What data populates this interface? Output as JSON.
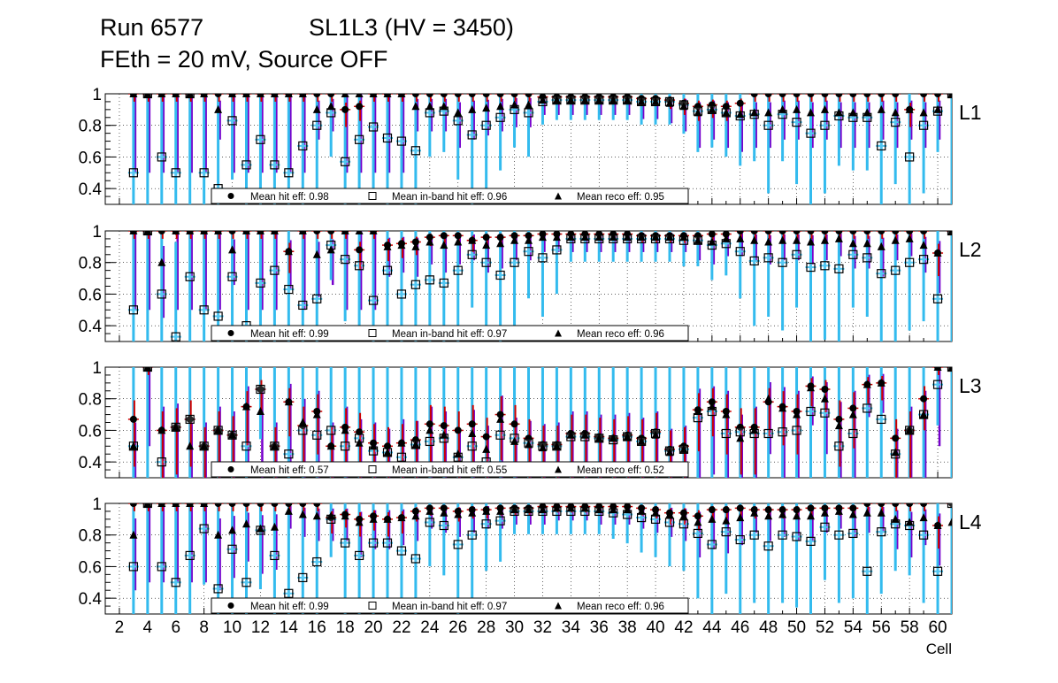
{
  "header": {
    "run": "Run 6577",
    "chamber": "SL1L3 (HV = 3450)",
    "conditions": "FEth = 20 mV, Source OFF"
  },
  "legend_labels": {
    "hit": "Mean hit  eff:",
    "inband": "Mean in-band hit eff:",
    "reco": "Mean reco eff:"
  },
  "colors": {
    "hit_error": "#cc0000",
    "inband_error": "#33bbee",
    "reco_error": "#7700cc",
    "marker": "#000000"
  },
  "chart_data": {
    "type": "scatter",
    "xlabel": "Cell",
    "xlim": [
      1,
      61
    ],
    "ylim": [
      0.3,
      1.0
    ],
    "x_ticks": [
      2,
      4,
      6,
      8,
      10,
      12,
      14,
      16,
      18,
      20,
      22,
      24,
      26,
      28,
      30,
      32,
      34,
      36,
      38,
      40,
      42,
      44,
      46,
      48,
      50,
      52,
      54,
      56,
      58,
      60
    ],
    "y_ticks": [
      0.4,
      0.6,
      0.8,
      1
    ],
    "y_tick_labels": [
      "0.4",
      "0.6",
      "0.8",
      "1"
    ],
    "panels": [
      {
        "layer": "L1",
        "mean_hit_eff": "0.98",
        "mean_inband_eff": "0.96",
        "mean_reco_eff": "0.95",
        "hit": [
          1.0,
          1.0,
          1.0,
          1.0,
          1.0,
          1.0,
          1.0,
          1.0,
          1.0,
          1.0,
          1.0,
          1.0,
          1.0,
          1.0,
          1.0,
          0.9,
          0.92,
          1.0,
          1.0,
          1.0,
          1.0,
          1.0,
          1.0,
          1.0,
          1.0,
          1.0,
          1.0,
          1.0,
          1.0,
          0.98,
          0.98,
          0.98,
          0.98,
          0.98,
          0.98,
          0.98,
          0.97,
          0.97,
          0.96,
          0.94,
          0.92,
          0.93,
          0.92,
          0.94,
          1.0,
          1.0,
          1.0,
          1.0,
          1.0,
          1.0,
          1.0,
          1.0,
          1.0,
          1.0,
          1.0,
          0.9,
          1.0,
          1.0,
          1.0
        ],
        "inband": [
          0.5,
          1.0,
          0.6,
          0.5,
          1.0,
          0.5,
          0.4,
          0.83,
          0.55,
          0.71,
          0.55,
          0.5,
          0.67,
          0.8,
          0.88,
          0.57,
          0.71,
          0.79,
          0.72,
          0.7,
          0.64,
          0.88,
          0.89,
          0.83,
          0.74,
          0.8,
          0.85,
          0.9,
          0.88,
          0.95,
          0.96,
          0.96,
          0.96,
          0.96,
          0.96,
          0.96,
          0.95,
          0.95,
          0.95,
          0.93,
          0.89,
          0.9,
          0.88,
          0.86,
          0.87,
          0.8,
          0.87,
          0.82,
          0.75,
          0.8,
          0.86,
          0.85,
          0.85,
          0.67,
          0.82,
          0.6,
          0.8,
          0.89,
          1.0
        ],
        "reco": [
          1.0,
          1.0,
          1.0,
          1.0,
          1.0,
          1.0,
          0.9,
          1.0,
          1.0,
          1.0,
          1.0,
          1.0,
          1.0,
          0.9,
          0.92,
          1.0,
          1.0,
          1.0,
          1.0,
          1.0,
          0.92,
          0.92,
          0.92,
          0.88,
          0.9,
          0.91,
          0.92,
          0.93,
          0.93,
          0.96,
          0.96,
          0.96,
          0.96,
          0.96,
          0.96,
          0.96,
          0.95,
          0.95,
          0.94,
          0.92,
          0.88,
          0.9,
          0.88,
          0.87,
          0.88,
          0.88,
          0.9,
          0.9,
          0.88,
          0.9,
          0.88,
          0.88,
          0.88,
          0.9,
          0.88,
          0.9,
          0.88,
          0.9,
          1.0
        ]
      },
      {
        "layer": "L2",
        "mean_hit_eff": "0.99",
        "mean_inband_eff": "0.97",
        "mean_reco_eff": "0.96",
        "hit": [
          1.0,
          1.0,
          1.0,
          1.0,
          1.0,
          1.0,
          1.0,
          1.0,
          1.0,
          1.0,
          1.0,
          0.87,
          1.0,
          1.0,
          1.0,
          1.0,
          0.88,
          1.0,
          0.91,
          0.92,
          0.93,
          0.96,
          0.97,
          0.97,
          0.94,
          0.96,
          0.96,
          0.97,
          0.97,
          0.98,
          0.98,
          0.98,
          0.98,
          0.98,
          0.98,
          0.98,
          0.97,
          0.97,
          0.97,
          0.97,
          0.97,
          0.98,
          0.98,
          1.0,
          1.0,
          1.0,
          1.0,
          1.0,
          1.0,
          1.0,
          1.0,
          1.0,
          1.0,
          1.0,
          1.0,
          1.0,
          1.0,
          0.86,
          1.0
        ],
        "inband": [
          0.5,
          1.0,
          0.6,
          0.33,
          0.71,
          0.5,
          0.46,
          0.71,
          0.4,
          0.67,
          0.75,
          0.63,
          0.53,
          0.57,
          0.91,
          0.82,
          0.78,
          0.56,
          0.75,
          0.6,
          0.66,
          0.69,
          0.67,
          0.75,
          0.85,
          0.8,
          0.72,
          0.8,
          0.87,
          0.83,
          0.88,
          0.95,
          0.95,
          0.95,
          0.95,
          0.95,
          0.95,
          0.95,
          0.95,
          0.94,
          0.94,
          0.91,
          0.92,
          0.87,
          0.81,
          0.83,
          0.8,
          0.85,
          0.77,
          0.78,
          0.76,
          0.85,
          0.83,
          0.73,
          0.75,
          0.8,
          0.82,
          0.57,
          1.0
        ],
        "reco": [
          1.0,
          1.0,
          0.8,
          1.0,
          1.0,
          1.0,
          1.0,
          0.88,
          1.0,
          1.0,
          1.0,
          0.87,
          1.0,
          0.85,
          0.88,
          1.0,
          1.0,
          1.0,
          0.9,
          0.91,
          0.9,
          0.93,
          0.91,
          0.93,
          0.94,
          0.91,
          0.92,
          0.94,
          0.94,
          0.96,
          0.96,
          0.96,
          0.96,
          0.96,
          0.96,
          0.96,
          0.96,
          0.96,
          0.96,
          0.96,
          0.94,
          0.93,
          0.95,
          0.95,
          0.94,
          0.93,
          0.94,
          0.94,
          0.93,
          0.94,
          0.95,
          0.92,
          0.92,
          0.9,
          0.94,
          0.95,
          0.91,
          0.86,
          1.0
        ]
      },
      {
        "layer": "L3",
        "mean_hit_eff": "0.57",
        "mean_inband_eff": "0.55",
        "mean_reco_eff": "0.52",
        "hit": [
          0.67,
          1.0,
          0.6,
          0.62,
          0.67,
          0.5,
          0.6,
          0.57,
          0.75,
          0.86,
          0.5,
          0.78,
          0.63,
          0.72,
          0.5,
          0.62,
          0.59,
          0.52,
          0.5,
          0.52,
          0.54,
          0.64,
          0.63,
          0.6,
          0.64,
          0.56,
          0.7,
          0.64,
          0.55,
          0.51,
          0.51,
          0.58,
          0.58,
          0.56,
          0.55,
          0.57,
          0.55,
          0.59,
          0.48,
          0.5,
          0.73,
          0.78,
          0.72,
          0.62,
          0.62,
          0.78,
          0.75,
          0.72,
          0.88,
          0.86,
          0.67,
          0.74,
          0.89,
          0.9,
          0.55,
          0.6,
          0.8,
          1.0,
          1.0
        ],
        "inband": [
          0.5,
          1.0,
          0.4,
          0.62,
          0.67,
          0.5,
          0.6,
          0.57,
          0.5,
          0.86,
          0.5,
          0.45,
          0.6,
          0.57,
          0.6,
          0.5,
          0.55,
          0.47,
          0.46,
          0.43,
          0.51,
          0.53,
          0.55,
          0.43,
          0.5,
          0.4,
          0.57,
          0.55,
          0.52,
          0.5,
          0.5,
          0.56,
          0.56,
          0.55,
          0.54,
          0.56,
          0.53,
          0.58,
          0.47,
          0.48,
          0.68,
          0.72,
          0.58,
          0.59,
          0.58,
          0.58,
          0.59,
          0.6,
          0.72,
          0.71,
          0.5,
          0.58,
          0.74,
          0.67,
          0.45,
          0.6,
          0.7,
          0.89,
          1.0
        ],
        "reco": [
          0.5,
          1.0,
          0.6,
          0.62,
          0.5,
          0.5,
          0.6,
          0.57,
          0.75,
          0.72,
          0.5,
          0.78,
          0.65,
          0.7,
          0.5,
          0.6,
          0.52,
          0.5,
          0.46,
          0.52,
          0.51,
          0.6,
          0.57,
          0.45,
          0.58,
          0.48,
          0.67,
          0.53,
          0.51,
          0.49,
          0.5,
          0.57,
          0.57,
          0.55,
          0.55,
          0.56,
          0.53,
          0.57,
          0.46,
          0.48,
          0.72,
          0.75,
          0.7,
          0.55,
          0.6,
          0.8,
          0.74,
          0.7,
          0.87,
          0.8,
          0.63,
          0.7,
          0.89,
          0.9,
          0.46,
          0.6,
          0.7,
          1.0,
          1.0
        ]
      },
      {
        "layer": "L4",
        "mean_hit_eff": "0.99",
        "mean_inband_eff": "0.97",
        "mean_reco_eff": "0.96",
        "hit": [
          1.0,
          1.0,
          1.0,
          1.0,
          1.0,
          1.0,
          1.0,
          1.0,
          1.0,
          1.0,
          1.0,
          1.0,
          1.0,
          1.0,
          0.91,
          0.93,
          0.9,
          0.92,
          0.9,
          0.91,
          0.95,
          0.97,
          0.97,
          0.95,
          0.96,
          0.96,
          0.97,
          0.97,
          0.97,
          0.98,
          0.98,
          0.98,
          0.98,
          0.98,
          0.98,
          0.98,
          0.97,
          0.96,
          0.94,
          0.94,
          0.92,
          0.96,
          0.96,
          0.97,
          0.96,
          0.96,
          0.96,
          0.96,
          0.97,
          0.97,
          0.97,
          0.97,
          1.0,
          1.0,
          1.0,
          1.0,
          1.0,
          0.86,
          1.0
        ],
        "inband": [
          0.6,
          1.0,
          0.6,
          0.5,
          0.67,
          0.84,
          0.46,
          0.71,
          0.5,
          0.83,
          0.67,
          0.43,
          0.53,
          0.63,
          0.9,
          0.75,
          0.67,
          0.75,
          0.75,
          0.7,
          0.65,
          0.88,
          0.86,
          0.74,
          0.8,
          0.87,
          0.89,
          0.95,
          0.95,
          0.95,
          0.95,
          0.95,
          0.95,
          0.95,
          0.94,
          0.93,
          0.91,
          0.9,
          0.88,
          0.87,
          0.81,
          0.74,
          0.82,
          0.77,
          0.8,
          0.73,
          0.8,
          0.79,
          0.76,
          0.85,
          0.8,
          0.81,
          0.57,
          0.82,
          0.87,
          0.86,
          0.8,
          0.57,
          1.0
        ],
        "reco": [
          0.8,
          1.0,
          1.0,
          1.0,
          1.0,
          1.0,
          0.8,
          0.83,
          0.87,
          0.84,
          0.85,
          0.95,
          0.93,
          0.92,
          0.92,
          0.92,
          0.88,
          0.9,
          0.9,
          0.91,
          0.92,
          0.95,
          0.94,
          0.93,
          0.94,
          0.95,
          0.95,
          0.96,
          0.96,
          0.96,
          0.97,
          0.97,
          0.97,
          0.96,
          0.96,
          0.96,
          0.95,
          0.94,
          0.93,
          0.92,
          0.88,
          0.9,
          0.89,
          0.91,
          0.94,
          0.92,
          0.93,
          0.92,
          0.92,
          0.94,
          0.95,
          0.93,
          0.94,
          0.94,
          0.9,
          0.88,
          0.91,
          0.86,
          0.88
        ]
      }
    ]
  }
}
